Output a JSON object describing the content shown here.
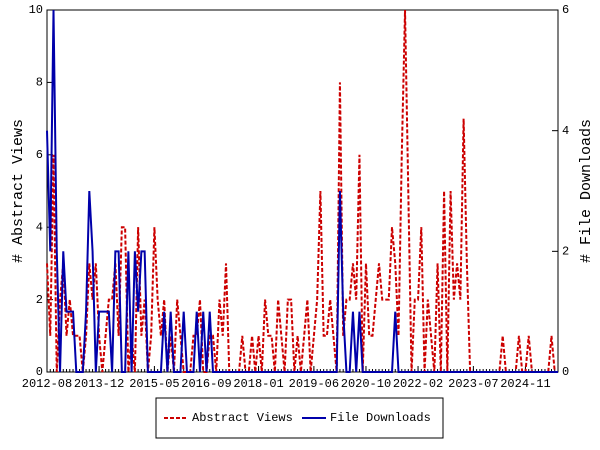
{
  "chart_data": {
    "type": "line",
    "x": [
      "2012-08",
      "2012-09",
      "2012-10",
      "2012-11",
      "2012-12",
      "2013-01",
      "2013-02",
      "2013-03",
      "2013-04",
      "2013-05",
      "2013-06",
      "2013-07",
      "2013-08",
      "2013-09",
      "2013-10",
      "2013-11",
      "2013-12",
      "2014-01",
      "2014-02",
      "2014-03",
      "2014-04",
      "2014-05",
      "2014-06",
      "2014-07",
      "2014-08",
      "2014-09",
      "2014-10",
      "2014-11",
      "2014-12",
      "2015-01",
      "2015-02",
      "2015-03",
      "2015-04",
      "2015-05",
      "2015-06",
      "2015-07",
      "2015-08",
      "2015-09",
      "2015-10",
      "2015-11",
      "2015-12",
      "2016-01",
      "2016-02",
      "2016-03",
      "2016-04",
      "2016-05",
      "2016-06",
      "2016-07",
      "2016-08",
      "2016-09",
      "2016-10",
      "2016-11",
      "2016-12",
      "2017-01",
      "2017-02",
      "2017-03",
      "2017-04",
      "2017-05",
      "2017-06",
      "2017-07",
      "2017-08",
      "2017-09",
      "2017-10",
      "2017-11",
      "2017-12",
      "2018-01",
      "2018-02",
      "2018-03",
      "2018-04",
      "2018-05",
      "2018-06",
      "2018-07",
      "2018-08",
      "2018-09",
      "2018-10",
      "2018-11",
      "2018-12",
      "2019-01",
      "2019-02",
      "2019-03",
      "2019-04",
      "2019-05",
      "2019-06",
      "2019-07",
      "2019-08",
      "2019-09",
      "2019-10",
      "2019-11",
      "2019-12",
      "2020-01",
      "2020-02",
      "2020-03",
      "2020-04",
      "2020-05",
      "2020-06",
      "2020-07",
      "2020-08",
      "2020-09",
      "2020-10",
      "2020-11",
      "2020-12",
      "2021-01",
      "2021-02",
      "2021-03",
      "2021-04",
      "2021-05",
      "2021-06",
      "2021-07",
      "2021-08",
      "2021-09",
      "2021-10",
      "2021-11",
      "2021-12",
      "2022-01",
      "2022-02",
      "2022-03",
      "2022-04",
      "2022-05",
      "2022-06",
      "2022-07",
      "2022-08",
      "2022-09",
      "2022-10",
      "2022-11",
      "2022-12",
      "2023-01",
      "2023-02",
      "2023-03",
      "2023-04",
      "2023-05",
      "2023-06",
      "2023-07",
      "2023-08",
      "2023-09",
      "2023-10",
      "2023-11",
      "2023-12",
      "2024-01",
      "2024-02",
      "2024-03",
      "2024-04",
      "2024-05",
      "2024-06",
      "2024-07",
      "2024-08",
      "2024-09",
      "2024-10",
      "2024-11",
      "2024-12",
      "2025-01",
      "2025-02",
      "2025-03",
      "2025-04",
      "2025-05",
      "2025-06",
      "2025-07",
      "2025-08",
      "2025-09"
    ],
    "series": [
      {
        "name": "Abstract Views",
        "color": "#cc0000",
        "axis": "y",
        "dash": true,
        "values": [
          3,
          1,
          6,
          0,
          2,
          3,
          1,
          2,
          1,
          1,
          1,
          0,
          1,
          3,
          2,
          3,
          1,
          0,
          1,
          2,
          2,
          3,
          1,
          4,
          4,
          0,
          1,
          0,
          4,
          1,
          2,
          0,
          1,
          4,
          2,
          1,
          2,
          0,
          1,
          0,
          2,
          1,
          0,
          0,
          0,
          1,
          1,
          2,
          0,
          0,
          1,
          1,
          0,
          2,
          1,
          3,
          0,
          0,
          0,
          0,
          1,
          0,
          0,
          1,
          0,
          1,
          0,
          2,
          1,
          1,
          0,
          2,
          1,
          0,
          2,
          2,
          0,
          1,
          0,
          1,
          2,
          0,
          1,
          2,
          5,
          1,
          1,
          2,
          1,
          0,
          8,
          1,
          2,
          2,
          3,
          2,
          6,
          0,
          3,
          1,
          1,
          2,
          3,
          2,
          2,
          2,
          4,
          3,
          1,
          6,
          10,
          5,
          0,
          2,
          2,
          4,
          0,
          2,
          1,
          0,
          3,
          0,
          5,
          0,
          5,
          2,
          3,
          2,
          7,
          3,
          0,
          0,
          0,
          0,
          0,
          0,
          0,
          0,
          0,
          0,
          1,
          0,
          0,
          0,
          0,
          1,
          0,
          0,
          1,
          0,
          0,
          0,
          0,
          0,
          0,
          1,
          0,
          0
        ]
      },
      {
        "name": "File Downloads",
        "color": "#0000aa",
        "axis": "y2",
        "dash": false,
        "values": [
          4,
          2,
          6,
          2,
          0,
          2,
          1,
          1,
          1,
          0,
          0,
          0,
          1,
          3,
          2,
          0,
          1,
          1,
          1,
          1,
          0,
          2,
          2,
          0,
          0,
          2,
          0,
          2,
          1,
          2,
          2,
          0,
          0,
          0,
          0,
          0,
          1,
          0,
          1,
          0,
          0,
          0,
          1,
          0,
          0,
          0,
          1,
          0,
          1,
          0,
          1,
          0,
          0,
          0,
          0,
          0,
          0,
          0,
          0,
          0,
          0,
          0,
          0,
          0,
          0,
          0,
          0,
          0,
          0,
          0,
          0,
          0,
          0,
          0,
          0,
          0,
          0,
          0,
          0,
          0,
          0,
          0,
          0,
          0,
          0,
          0,
          0,
          0,
          0,
          0,
          3,
          1,
          0,
          0,
          1,
          0,
          1,
          0,
          0,
          0,
          0,
          0,
          0,
          0,
          0,
          0,
          0,
          1,
          0,
          0,
          0,
          0,
          0,
          0,
          0,
          0,
          0,
          0,
          0,
          0,
          0,
          0,
          0,
          0,
          0,
          0,
          0,
          0,
          0,
          0,
          0,
          0,
          0,
          0,
          0,
          0,
          0,
          0,
          0,
          0,
          0,
          0,
          0,
          0,
          0,
          0,
          0,
          0,
          0,
          0,
          0,
          0,
          0,
          0,
          0,
          0,
          0,
          0
        ]
      }
    ],
    "xlim": [
      "2012-08",
      "2025-09"
    ],
    "xticks": [
      "2012-08",
      "2013-12",
      "2015-05",
      "2016-09",
      "2018-01",
      "2019-06",
      "2020-10",
      "2022-02",
      "2023-07",
      "2024-11"
    ],
    "ylabel": "# Abstract Views",
    "ylim": [
      0,
      10
    ],
    "yticks": [
      0,
      2,
      4,
      6,
      8,
      10
    ],
    "y2label": "# File Downloads",
    "y2lim": [
      0,
      6
    ],
    "y2ticks": [
      0,
      2,
      4,
      6
    ]
  }
}
